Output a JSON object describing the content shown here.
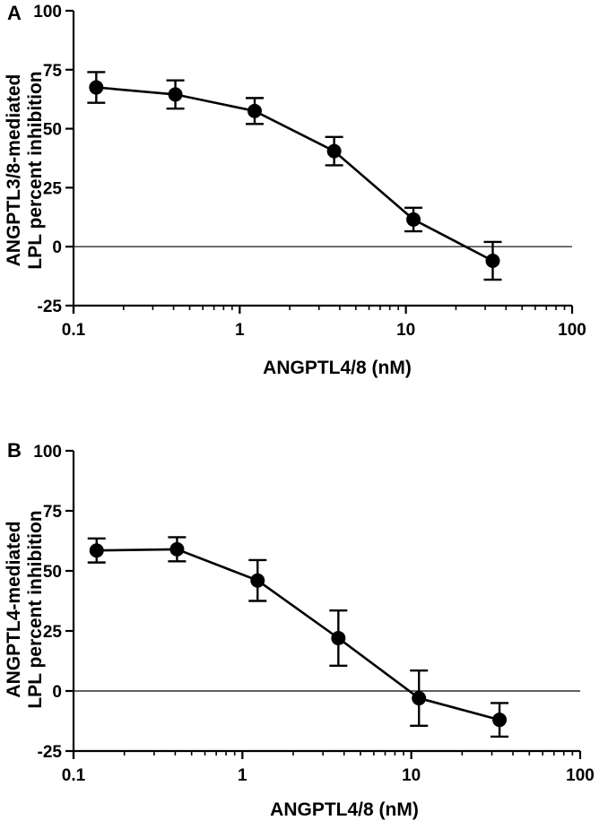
{
  "chart_data": [
    {
      "panel": "A",
      "type": "line",
      "xscale": "log",
      "xlim": [
        0.1,
        100
      ],
      "ylim": [
        -25,
        100
      ],
      "xticks": [
        "0.1",
        "1",
        "10",
        "100"
      ],
      "yticks": [
        "100",
        "75",
        "50",
        "25",
        "0",
        "-25"
      ],
      "xlabel": "ANGPTL4/8 (nM)",
      "ylabel_lines": [
        "ANGPTL3/8-mediated",
        "LPL percent inhibition"
      ],
      "reference_line_y": 0,
      "x": [
        0.137,
        0.41,
        1.23,
        3.7,
        11.1,
        33.3
      ],
      "y": [
        67.5,
        64.5,
        57.5,
        40.5,
        11.5,
        -6
      ],
      "error": [
        6.5,
        6,
        5.5,
        6,
        5,
        8
      ]
    },
    {
      "panel": "B",
      "type": "line",
      "xscale": "log",
      "xlim": [
        0.1,
        100
      ],
      "ylim": [
        -25,
        100
      ],
      "xticks": [
        "0.1",
        "1",
        "10",
        "100"
      ],
      "yticks": [
        "100",
        "75",
        "50",
        "25",
        "0",
        "-25"
      ],
      "xlabel": "ANGPTL4/8 (nM)",
      "ylabel_lines": [
        "ANGPTL4-mediated",
        "LPL percent inhibition"
      ],
      "reference_line_y": 0,
      "x": [
        0.137,
        0.41,
        1.23,
        3.7,
        11.1,
        33.3
      ],
      "y": [
        58.5,
        59,
        46,
        22,
        -3,
        -12
      ],
      "error": [
        5,
        5,
        8.5,
        11.5,
        11.5,
        7
      ]
    }
  ]
}
